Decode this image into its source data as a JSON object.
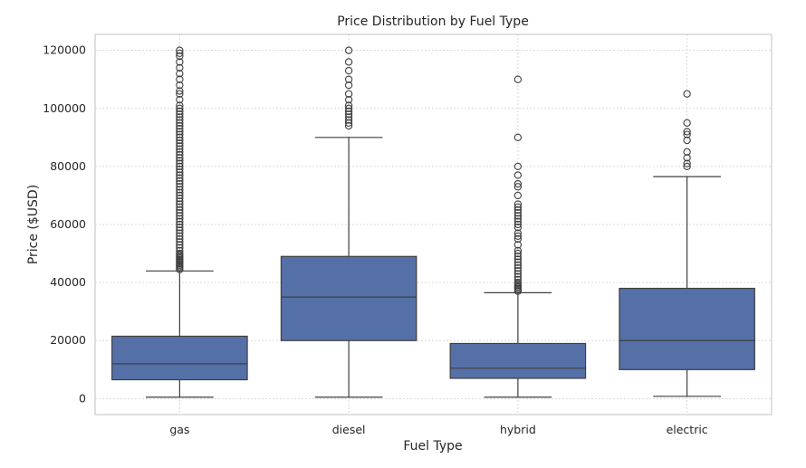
{
  "chart_data": {
    "type": "box",
    "title": "Price Distribution by Fuel Type",
    "xlabel": "Fuel Type",
    "ylabel": "Price ($USD)",
    "categories": [
      "gas",
      "diesel",
      "hybrid",
      "electric"
    ],
    "ylim": [
      -5500,
      125500
    ],
    "yticks": [
      0,
      20000,
      40000,
      60000,
      80000,
      100000,
      120000
    ],
    "ytick_labels": [
      "0",
      "20000",
      "40000",
      "60000",
      "80000",
      "100000",
      "120000"
    ],
    "grid": true,
    "box_color": "#5470a7",
    "line_color": "#3f3f3f",
    "boxes": [
      {
        "category": "gas",
        "whisker_low": 500,
        "q1": 6500,
        "median": 12000,
        "q3": 21500,
        "whisker_high": 44000,
        "outliers": [
          44500,
          45000,
          45500,
          46000,
          46500,
          47000,
          47500,
          48000,
          48500,
          49000,
          49500,
          50000,
          51000,
          52000,
          53000,
          54000,
          55000,
          56000,
          57000,
          58000,
          59000,
          60000,
          61000,
          62000,
          63000,
          64000,
          65000,
          66000,
          67000,
          68000,
          69000,
          70000,
          71000,
          72000,
          73000,
          74000,
          75000,
          76000,
          77000,
          78000,
          79000,
          80000,
          81000,
          82000,
          83000,
          84000,
          85000,
          86000,
          87000,
          88000,
          89000,
          90000,
          91000,
          92000,
          93000,
          94000,
          95000,
          96000,
          97000,
          98000,
          99000,
          100000,
          101000,
          103000,
          105000,
          106000,
          108000,
          110000,
          112000,
          114000,
          116000,
          118000,
          119000,
          120000
        ]
      },
      {
        "category": "diesel",
        "whisker_low": 500,
        "q1": 20000,
        "median": 35000,
        "q3": 49000,
        "whisker_high": 90000,
        "outliers": [
          94000,
          95000,
          96000,
          97000,
          98000,
          99000,
          100000,
          101000,
          103000,
          105000,
          108000,
          110000,
          113000,
          116000,
          120000
        ]
      },
      {
        "category": "hybrid",
        "whisker_low": 500,
        "q1": 7000,
        "median": 10500,
        "q3": 19000,
        "whisker_high": 36500,
        "outliers": [
          37000,
          37500,
          38000,
          38500,
          39000,
          39500,
          40000,
          41000,
          42000,
          43000,
          44000,
          45000,
          46000,
          47000,
          48000,
          49000,
          50000,
          51000,
          53000,
          55000,
          56000,
          57000,
          59000,
          60000,
          61000,
          62000,
          63000,
          64000,
          65000,
          66000,
          67000,
          70000,
          73000,
          74000,
          77000,
          80000,
          90000,
          110000
        ]
      },
      {
        "category": "electric",
        "whisker_low": 800,
        "q1": 10000,
        "median": 20000,
        "q3": 38000,
        "whisker_high": 76500,
        "outliers": [
          80000,
          81000,
          83000,
          85000,
          89000,
          91000,
          92000,
          95000,
          105000
        ]
      }
    ]
  }
}
